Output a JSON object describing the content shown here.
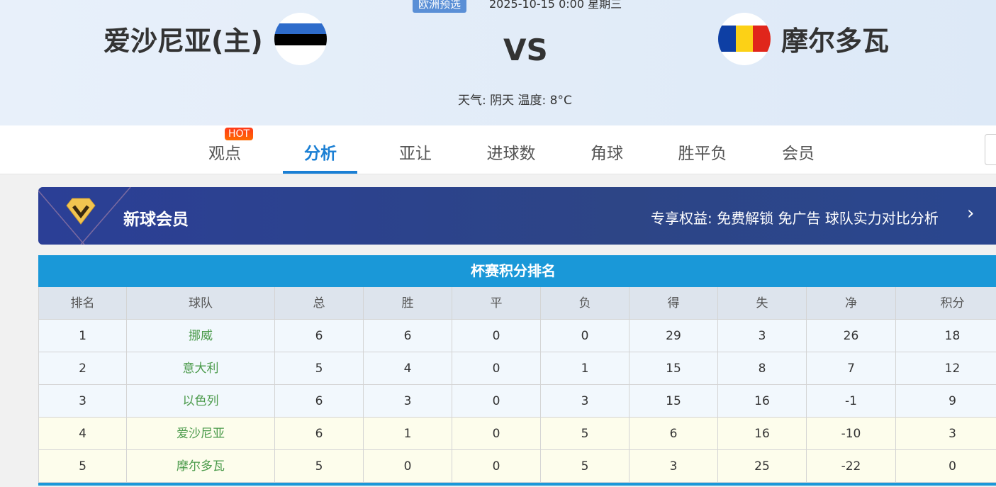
{
  "match": {
    "league": "欧洲预选",
    "datetime": "2025-10-15 0:00 星期三",
    "home": "爱沙尼亚(主)",
    "away": "摩尔多瓦",
    "vs": "VS",
    "weather": "天气: 阴天 温度: 8°C"
  },
  "nav": {
    "tabs": [
      {
        "label": "观点",
        "badge": "HOT"
      },
      {
        "label": "分析",
        "active": true
      },
      {
        "label": "亚让"
      },
      {
        "label": "进球数"
      },
      {
        "label": "角球"
      },
      {
        "label": "胜平负"
      },
      {
        "label": "会员"
      }
    ]
  },
  "vip": {
    "title": "新球会员",
    "benefits": "专享权益: 免费解锁 免广告 球队实力对比分析"
  },
  "standings": {
    "title": "杯赛积分排名",
    "headers": [
      "排名",
      "球队",
      "总",
      "胜",
      "平",
      "负",
      "得",
      "失",
      "净",
      "积分"
    ],
    "rows": [
      [
        "1",
        "挪威",
        "6",
        "6",
        "0",
        "0",
        "29",
        "3",
        "26",
        "18"
      ],
      [
        "2",
        "意大利",
        "5",
        "4",
        "0",
        "1",
        "15",
        "8",
        "7",
        "12"
      ],
      [
        "3",
        "以色列",
        "6",
        "3",
        "0",
        "3",
        "15",
        "16",
        "-1",
        "9"
      ],
      [
        "4",
        "爱沙尼亚",
        "6",
        "1",
        "0",
        "5",
        "6",
        "16",
        "-10",
        "3"
      ],
      [
        "5",
        "摩尔多瓦",
        "5",
        "0",
        "0",
        "5",
        "3",
        "25",
        "-22",
        "0"
      ]
    ]
  },
  "colors": {
    "accent": "#1a7fd4",
    "table_header": "#1a98d8",
    "team_name": "#4a9a4a",
    "vip_bg": "#2b3f96"
  }
}
